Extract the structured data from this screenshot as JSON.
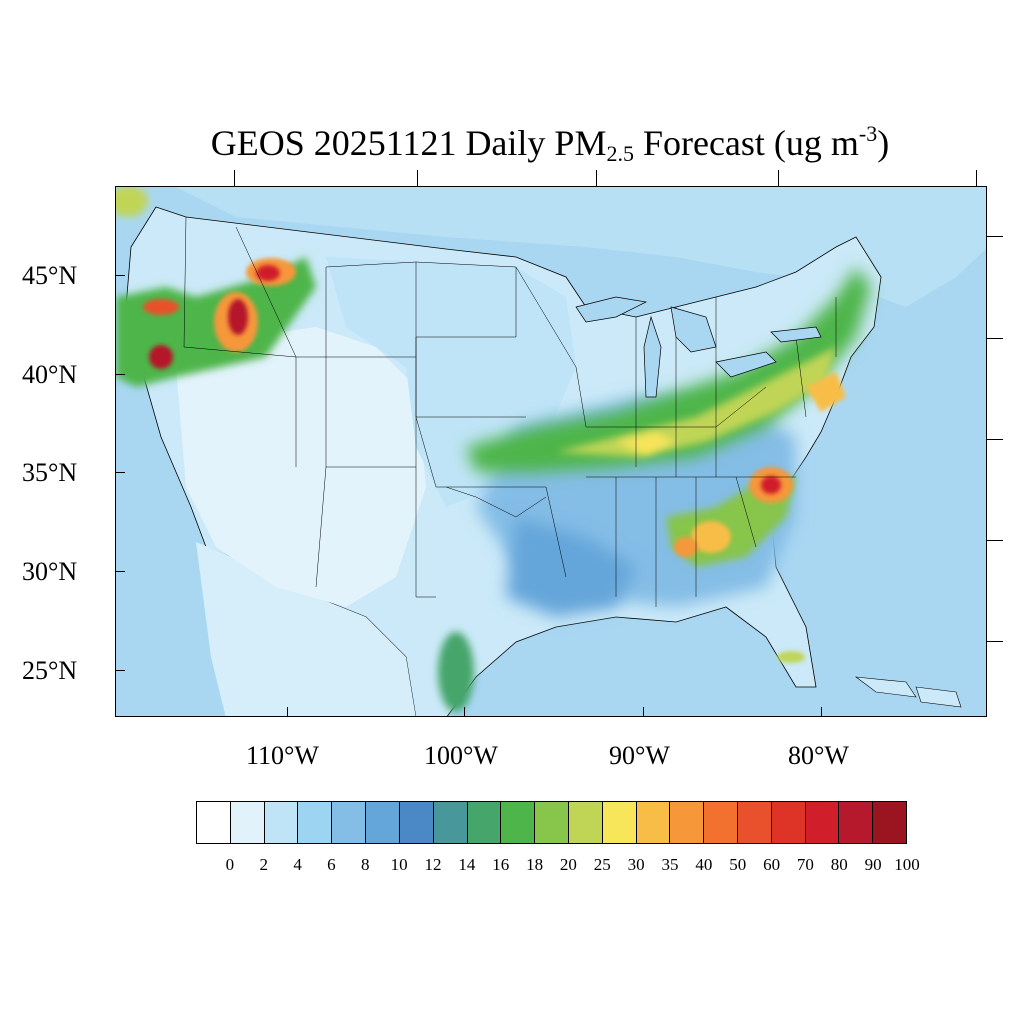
{
  "title": {
    "main": "GEOS 20251121 Daily PM",
    "subscript": "2.5",
    "rest": " Forecast (ug m",
    "superscript": "-3",
    "close": ")"
  },
  "map": {
    "region": "Contiguous United States",
    "ocean_color": "#a9d7f2",
    "land_base_color": "#e2f3fc",
    "lat_labels": [
      "45°N",
      "40°N",
      "35°N",
      "30°N",
      "25°N"
    ],
    "lon_labels": [
      "110°W",
      "100°W",
      "90°W",
      "80°W"
    ],
    "hotspots": [
      {
        "name": "Oregon coast",
        "level": 60
      },
      {
        "name": "Northern California",
        "level": 60
      },
      {
        "name": "Central Idaho",
        "level": 80
      },
      {
        "name": "Western Montana",
        "level": 70
      },
      {
        "name": "Ohio Valley",
        "level": 30
      },
      {
        "name": "North Carolina",
        "level": 60
      },
      {
        "name": "Georgia / Alabama",
        "level": 35
      },
      {
        "name": "Mid-Atlantic corridor",
        "level": 30
      },
      {
        "name": "South Florida",
        "level": 25
      }
    ]
  },
  "legend": {
    "labels": [
      "0",
      "2",
      "4",
      "6",
      "8",
      "10",
      "12",
      "14",
      "16",
      "18",
      "20",
      "25",
      "30",
      "35",
      "40",
      "50",
      "60",
      "70",
      "80",
      "90",
      "100"
    ],
    "colors": [
      "#ffffff",
      "#e1f2fb",
      "#bfe4f7",
      "#9dd4f2",
      "#84bde6",
      "#65a6da",
      "#4a88c6",
      "#48989b",
      "#45a56b",
      "#4db549",
      "#87c54b",
      "#c0d556",
      "#f7e55a",
      "#f8bd47",
      "#f6973a",
      "#f2712e",
      "#e8512b",
      "#de3427",
      "#d01f2a",
      "#b5192b",
      "#9a1520"
    ]
  }
}
